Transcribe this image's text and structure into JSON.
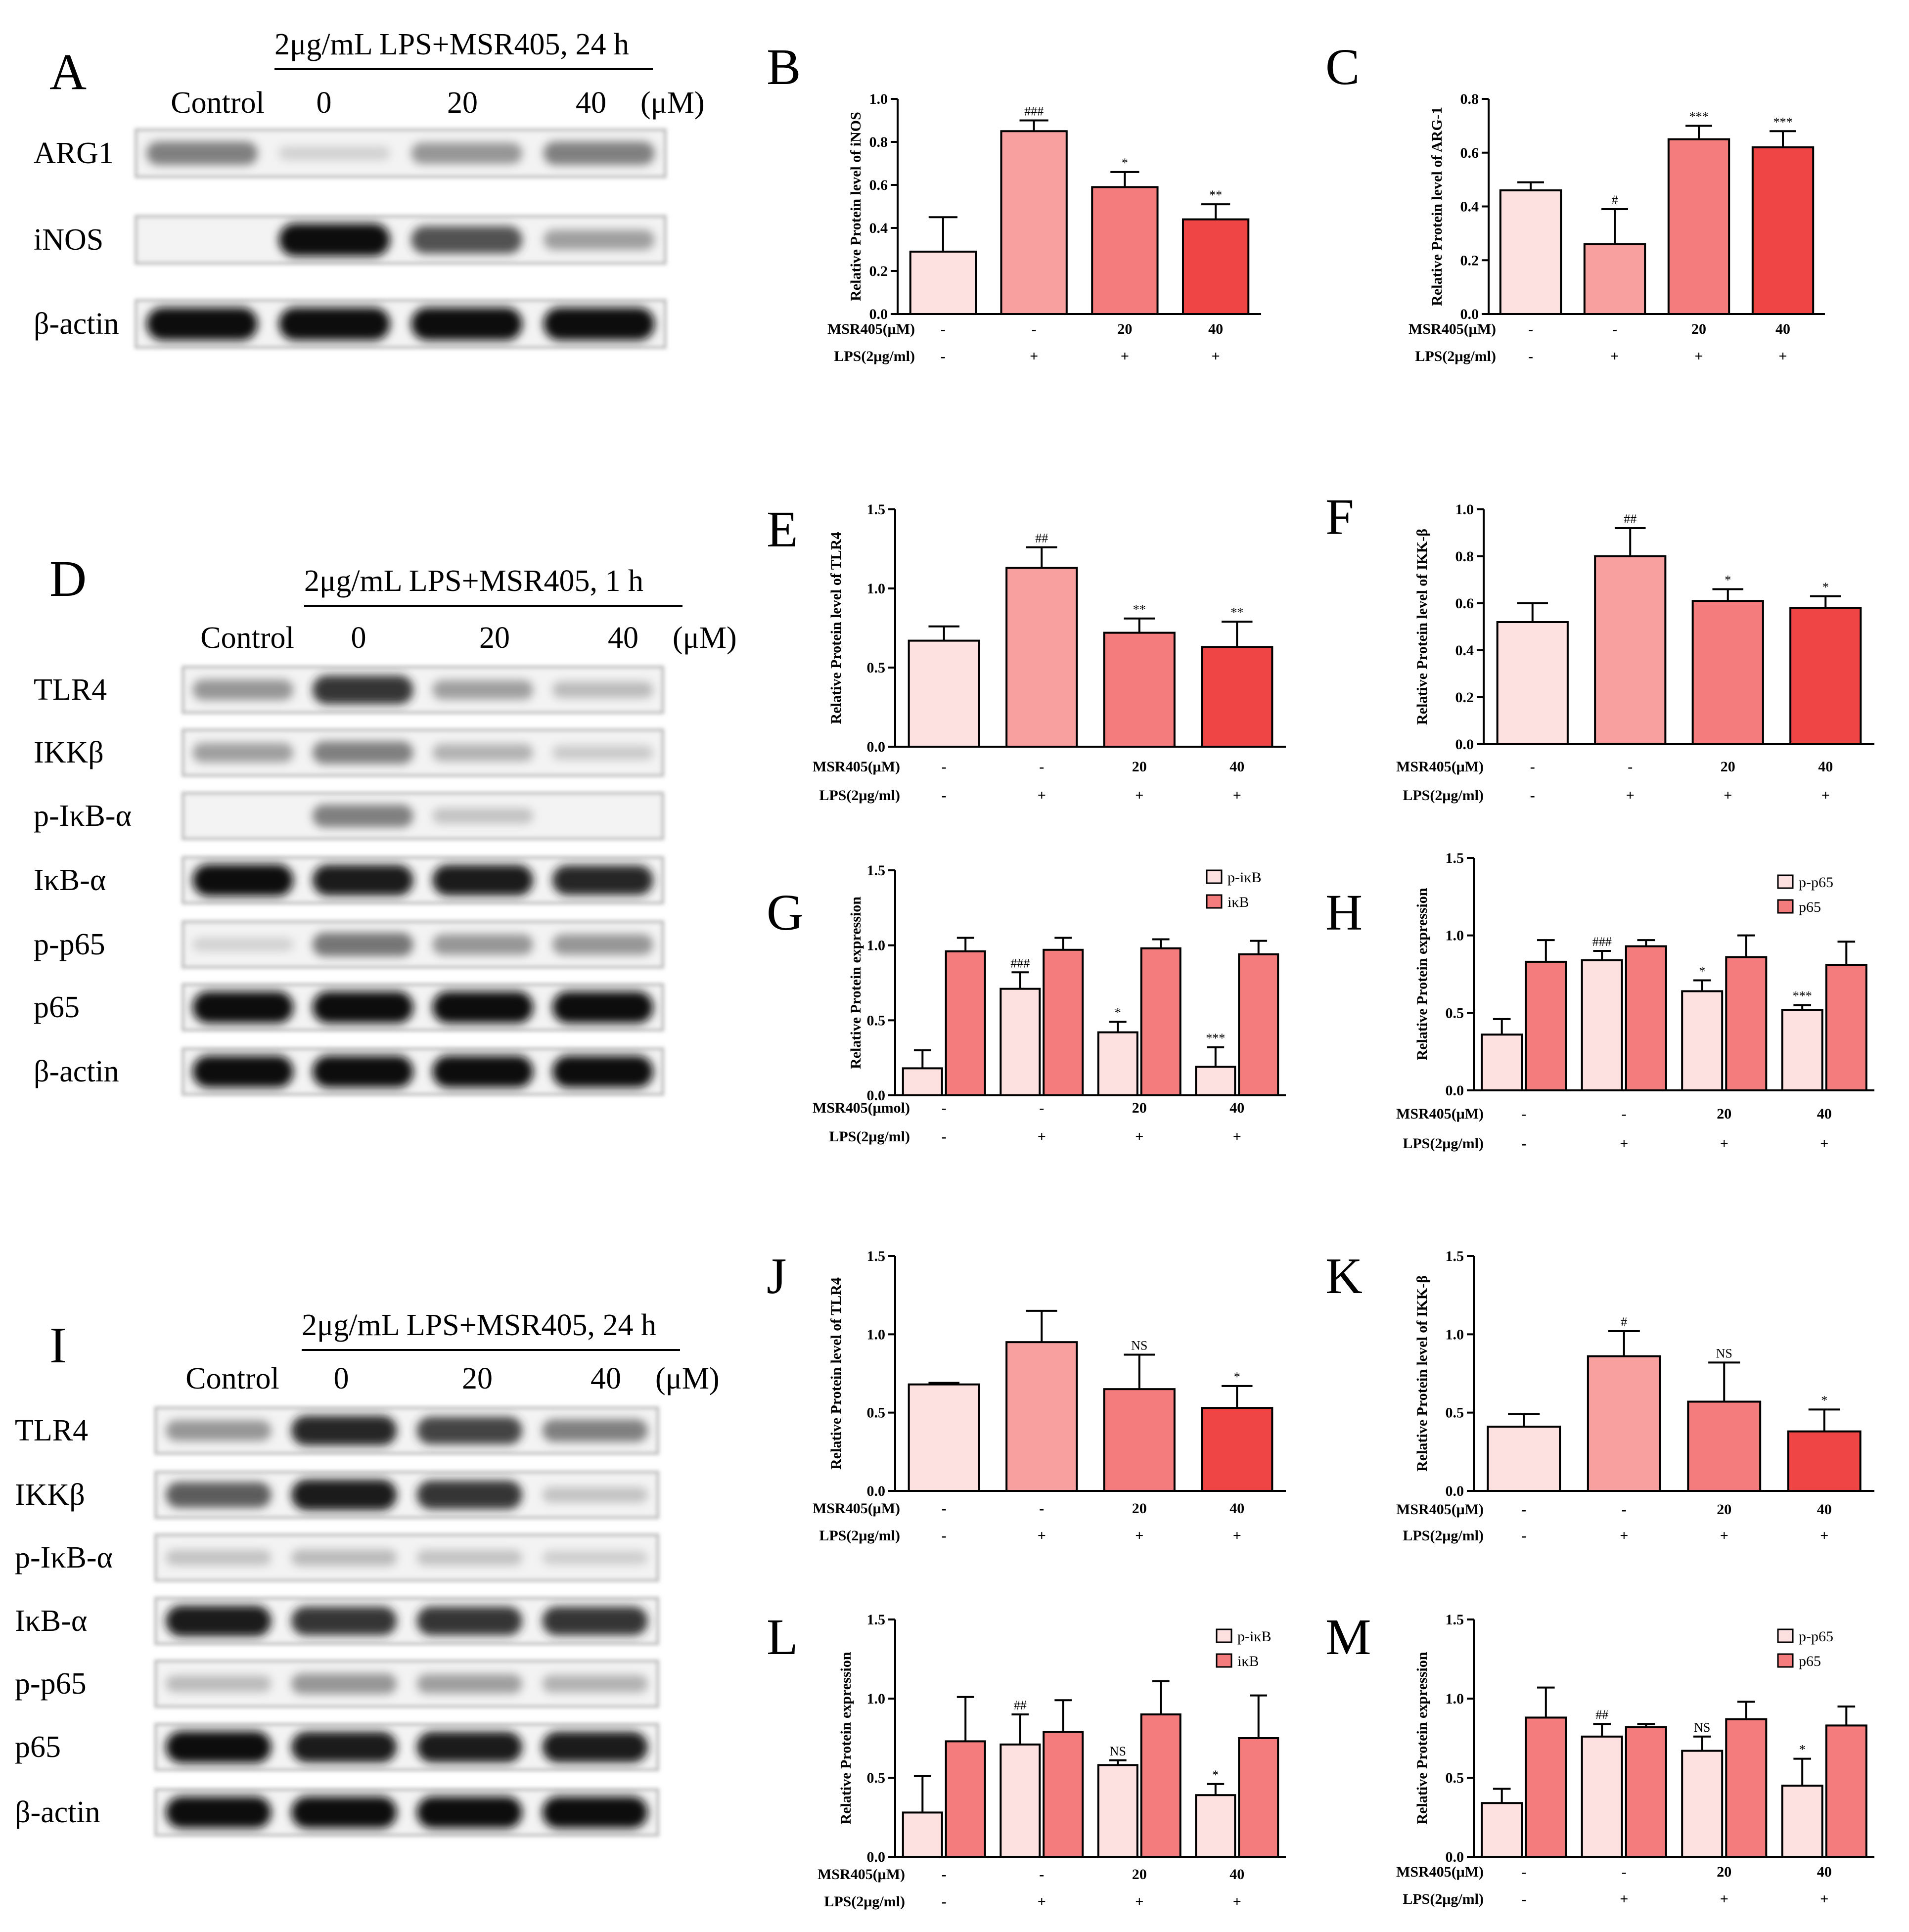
{
  "colors": {
    "group1": "#fde0e0",
    "group2": "#f8a0a0",
    "group3": "#f47c7c",
    "group4": "#f04545",
    "iNOS_like_bar2": "#f8a0a0",
    "second_series": "#f47c7c"
  },
  "blots": [
    {
      "panel": "A",
      "treatment": "2μg/mL LPS+MSR405, 24 h",
      "unit": "(μM)",
      "lanes": [
        "Control",
        "0",
        "20",
        "40"
      ],
      "rows": [
        "ARG1",
        "iNOS",
        "β-actin"
      ]
    },
    {
      "panel": "D",
      "treatment": "2μg/mL LPS+MSR405, 1 h",
      "unit": "(μM)",
      "lanes": [
        "Control",
        "0",
        "20",
        "40"
      ],
      "rows": [
        "TLR4",
        "IKKβ",
        "p-IκB-α",
        "IκB-α",
        "p-p65",
        "p65",
        "β-actin"
      ]
    },
    {
      "panel": "I",
      "treatment": "2μg/mL LPS+MSR405, 24 h",
      "unit": "(μM)",
      "lanes": [
        "Control",
        "0",
        "20",
        "40"
      ],
      "rows": [
        "TLR4",
        "IKKβ",
        "p-IκB-α",
        "IκB-α",
        "p-p65",
        "p65",
        "β-actin"
      ]
    }
  ],
  "chart_data": [
    {
      "panel": "B",
      "type": "bar",
      "ylabel": "Relative Protein level of iNOS",
      "ylim": [
        0,
        1.0
      ],
      "yticks": [
        "0.0",
        "0.2",
        "0.4",
        "0.6",
        "0.8",
        "1.0"
      ],
      "values": [
        0.29,
        0.85,
        0.59,
        0.44
      ],
      "errors": [
        0.16,
        0.05,
        0.07,
        0.07
      ],
      "sig": [
        "",
        "###",
        "*",
        "**"
      ],
      "row1_label": "MSR405(μM)",
      "row1": [
        "-",
        "-",
        "20",
        "40"
      ],
      "row2_label": "LPS(2μg/ml)",
      "row2": [
        "-",
        "+",
        "+",
        "+"
      ]
    },
    {
      "panel": "C",
      "type": "bar",
      "ylabel": "Relative Protein level of ARG-1",
      "ylim": [
        0,
        0.8
      ],
      "yticks": [
        "0.0",
        "0.2",
        "0.4",
        "0.6",
        "0.8"
      ],
      "values": [
        0.46,
        0.26,
        0.65,
        0.62
      ],
      "errors": [
        0.03,
        0.13,
        0.05,
        0.06
      ],
      "sig": [
        "",
        "#",
        "***",
        "***"
      ],
      "row1_label": "MSR405(μM)",
      "row1": [
        "-",
        "-",
        "20",
        "40"
      ],
      "row2_label": "LPS(2μg/ml)",
      "row2": [
        "-",
        "+",
        "+",
        "+"
      ]
    },
    {
      "panel": "E",
      "type": "bar",
      "ylabel": "Relative Protein level of TLR4",
      "ylim": [
        0,
        1.5
      ],
      "yticks": [
        "0.0",
        "0.5",
        "1.0",
        "1.5"
      ],
      "values": [
        0.67,
        1.13,
        0.72,
        0.63
      ],
      "errors": [
        0.09,
        0.13,
        0.09,
        0.16
      ],
      "sig": [
        "",
        "##",
        "**",
        "**"
      ],
      "row1_label": "MSR405(μM)",
      "row1": [
        "-",
        "-",
        "20",
        "40"
      ],
      "row2_label": "LPS(2μg/ml)",
      "row2": [
        "-",
        "+",
        "+",
        "+"
      ]
    },
    {
      "panel": "F",
      "type": "bar",
      "ylabel": "Relative Protein level of IKK-β",
      "ylim": [
        0,
        1.0
      ],
      "yticks": [
        "0.0",
        "0.2",
        "0.4",
        "0.6",
        "0.8",
        "1.0"
      ],
      "values": [
        0.52,
        0.8,
        0.61,
        0.58
      ],
      "errors": [
        0.08,
        0.12,
        0.05,
        0.05
      ],
      "sig": [
        "",
        "##",
        "*",
        "*"
      ],
      "row1_label": "MSR405(μM)",
      "row1": [
        "-",
        "-",
        "20",
        "40"
      ],
      "row2_label": "LPS(2μg/ml)",
      "row2": [
        "-",
        "+",
        "+",
        "+"
      ]
    },
    {
      "panel": "G",
      "type": "bar",
      "ylabel": "Relative Protein expression",
      "ylim": [
        0,
        1.5
      ],
      "yticks": [
        "0.0",
        "0.5",
        "1.0",
        "1.5"
      ],
      "series": [
        {
          "name": "p-iκB",
          "values": [
            0.18,
            0.71,
            0.42,
            0.19
          ],
          "errors": [
            0.12,
            0.11,
            0.07,
            0.13
          ],
          "sig": [
            "",
            "###",
            "*",
            "***"
          ]
        },
        {
          "name": "iκB",
          "values": [
            0.96,
            0.97,
            0.98,
            0.94
          ],
          "errors": [
            0.09,
            0.08,
            0.06,
            0.09
          ],
          "sig": [
            "",
            "",
            "",
            ""
          ]
        }
      ],
      "row1_label": "MSR405(μmol)",
      "row1": [
        "-",
        "-",
        "20",
        "40"
      ],
      "row2_label": "LPS(2μg/ml)",
      "row2": [
        "-",
        "+",
        "+",
        "+"
      ]
    },
    {
      "panel": "H",
      "type": "bar",
      "ylabel": "Relative Protein expression",
      "ylim": [
        0,
        1.5
      ],
      "yticks": [
        "0.0",
        "0.5",
        "1.0",
        "1.5"
      ],
      "series": [
        {
          "name": "p-p65",
          "values": [
            0.36,
            0.84,
            0.64,
            0.52
          ],
          "errors": [
            0.1,
            0.06,
            0.07,
            0.03
          ],
          "sig": [
            "",
            "###",
            "*",
            "***"
          ]
        },
        {
          "name": "p65",
          "values": [
            0.83,
            0.93,
            0.86,
            0.81
          ],
          "errors": [
            0.14,
            0.04,
            0.14,
            0.15
          ],
          "sig": [
            "",
            "",
            "",
            ""
          ]
        }
      ],
      "row1_label": "MSR405(μM)",
      "row1": [
        "-",
        "-",
        "20",
        "40"
      ],
      "row2_label": "LPS(2μg/ml)",
      "row2": [
        "-",
        "+",
        "+",
        "+"
      ]
    },
    {
      "panel": "J",
      "type": "bar",
      "ylabel": "Relative Protein level of TLR4",
      "ylim": [
        0,
        1.5
      ],
      "yticks": [
        "0.0",
        "0.5",
        "1.0",
        "1.5"
      ],
      "values": [
        0.68,
        0.95,
        0.65,
        0.53
      ],
      "errors": [
        0.01,
        0.2,
        0.22,
        0.14
      ],
      "sig": [
        "",
        "",
        "NS",
        "*"
      ],
      "row1_label": "MSR405(μM)",
      "row1": [
        "-",
        "-",
        "20",
        "40"
      ],
      "row2_label": "LPS(2μg/ml)",
      "row2": [
        "-",
        "+",
        "+",
        "+"
      ]
    },
    {
      "panel": "K",
      "type": "bar",
      "ylabel": "Relative Protein level of IKK-β",
      "ylim": [
        0,
        1.5
      ],
      "yticks": [
        "0.0",
        "0.5",
        "1.0",
        "1.5"
      ],
      "values": [
        0.41,
        0.86,
        0.57,
        0.38
      ],
      "errors": [
        0.08,
        0.16,
        0.25,
        0.14
      ],
      "sig": [
        "",
        "#",
        "NS",
        "*"
      ],
      "row1_label": "MSR405(μM)",
      "row1": [
        "-",
        "-",
        "20",
        "40"
      ],
      "row2_label": "LPS(2μg/ml)",
      "row2": [
        "-",
        "+",
        "+",
        "+"
      ]
    },
    {
      "panel": "L",
      "type": "bar",
      "ylabel": "Relative Protein expression",
      "ylim": [
        0,
        1.5
      ],
      "yticks": [
        "0.0",
        "0.5",
        "1.0",
        "1.5"
      ],
      "series": [
        {
          "name": "p-iκB",
          "values": [
            0.28,
            0.71,
            0.58,
            0.39
          ],
          "errors": [
            0.23,
            0.19,
            0.03,
            0.07
          ],
          "sig": [
            "",
            "##",
            "NS",
            "*"
          ]
        },
        {
          "name": "iκB",
          "values": [
            0.73,
            0.79,
            0.9,
            0.75
          ],
          "errors": [
            0.28,
            0.2,
            0.21,
            0.27
          ],
          "sig": [
            "",
            "",
            "",
            ""
          ]
        }
      ],
      "row1_label": "MSR405(μM)",
      "row1": [
        "-",
        "-",
        "20",
        "40"
      ],
      "row2_label": "LPS(2μg/ml)",
      "row2": [
        "-",
        "+",
        "+",
        "+"
      ]
    },
    {
      "panel": "M",
      "type": "bar",
      "ylabel": "Relative Protein expression",
      "ylim": [
        0,
        1.5
      ],
      "yticks": [
        "0.0",
        "0.5",
        "1.0",
        "1.5"
      ],
      "series": [
        {
          "name": "p-p65",
          "values": [
            0.34,
            0.76,
            0.67,
            0.45
          ],
          "errors": [
            0.09,
            0.08,
            0.09,
            0.17
          ],
          "sig": [
            "",
            "##",
            "NS",
            "*"
          ]
        },
        {
          "name": "p65",
          "values": [
            0.88,
            0.82,
            0.87,
            0.83
          ],
          "errors": [
            0.19,
            0.02,
            0.11,
            0.12
          ],
          "sig": [
            "",
            "",
            "",
            ""
          ]
        }
      ],
      "row1_label": "MSR405(μM)",
      "row1": [
        "-",
        "-",
        "20",
        "40"
      ],
      "row2_label": "LPS(2μg/ml)",
      "row2": [
        "-",
        "+",
        "+",
        "+"
      ]
    }
  ]
}
